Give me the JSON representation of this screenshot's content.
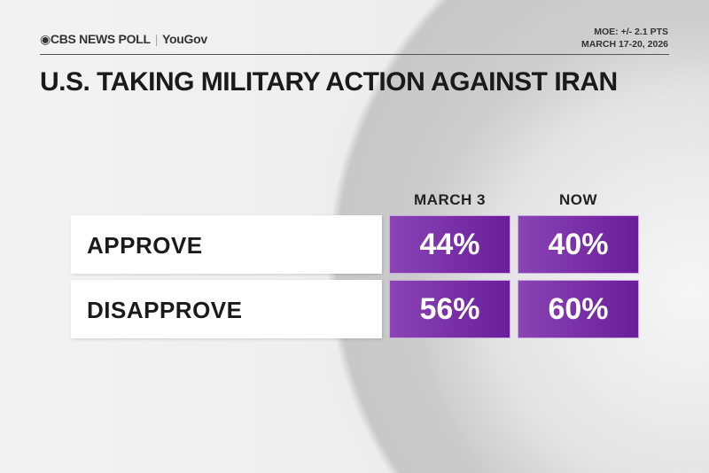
{
  "header": {
    "brand": "CBS NEWS POLL",
    "partner": "YouGov",
    "moe": "MOE: +/- 2.1 PTS",
    "dates": "MARCH 17-20, 2026"
  },
  "title": "U.S. TAKING MILITARY ACTION AGAINST IRAN",
  "chart_data": {
    "type": "table",
    "title": "U.S. TAKING MILITARY ACTION AGAINST IRAN",
    "columns": [
      "MARCH 3",
      "NOW"
    ],
    "rows": [
      {
        "label": "APPROVE",
        "values": [
          "44%",
          "40%"
        ]
      },
      {
        "label": "DISAPPROVE",
        "values": [
          "56%",
          "60%"
        ]
      }
    ],
    "accent_color": "#7a2fa8"
  }
}
